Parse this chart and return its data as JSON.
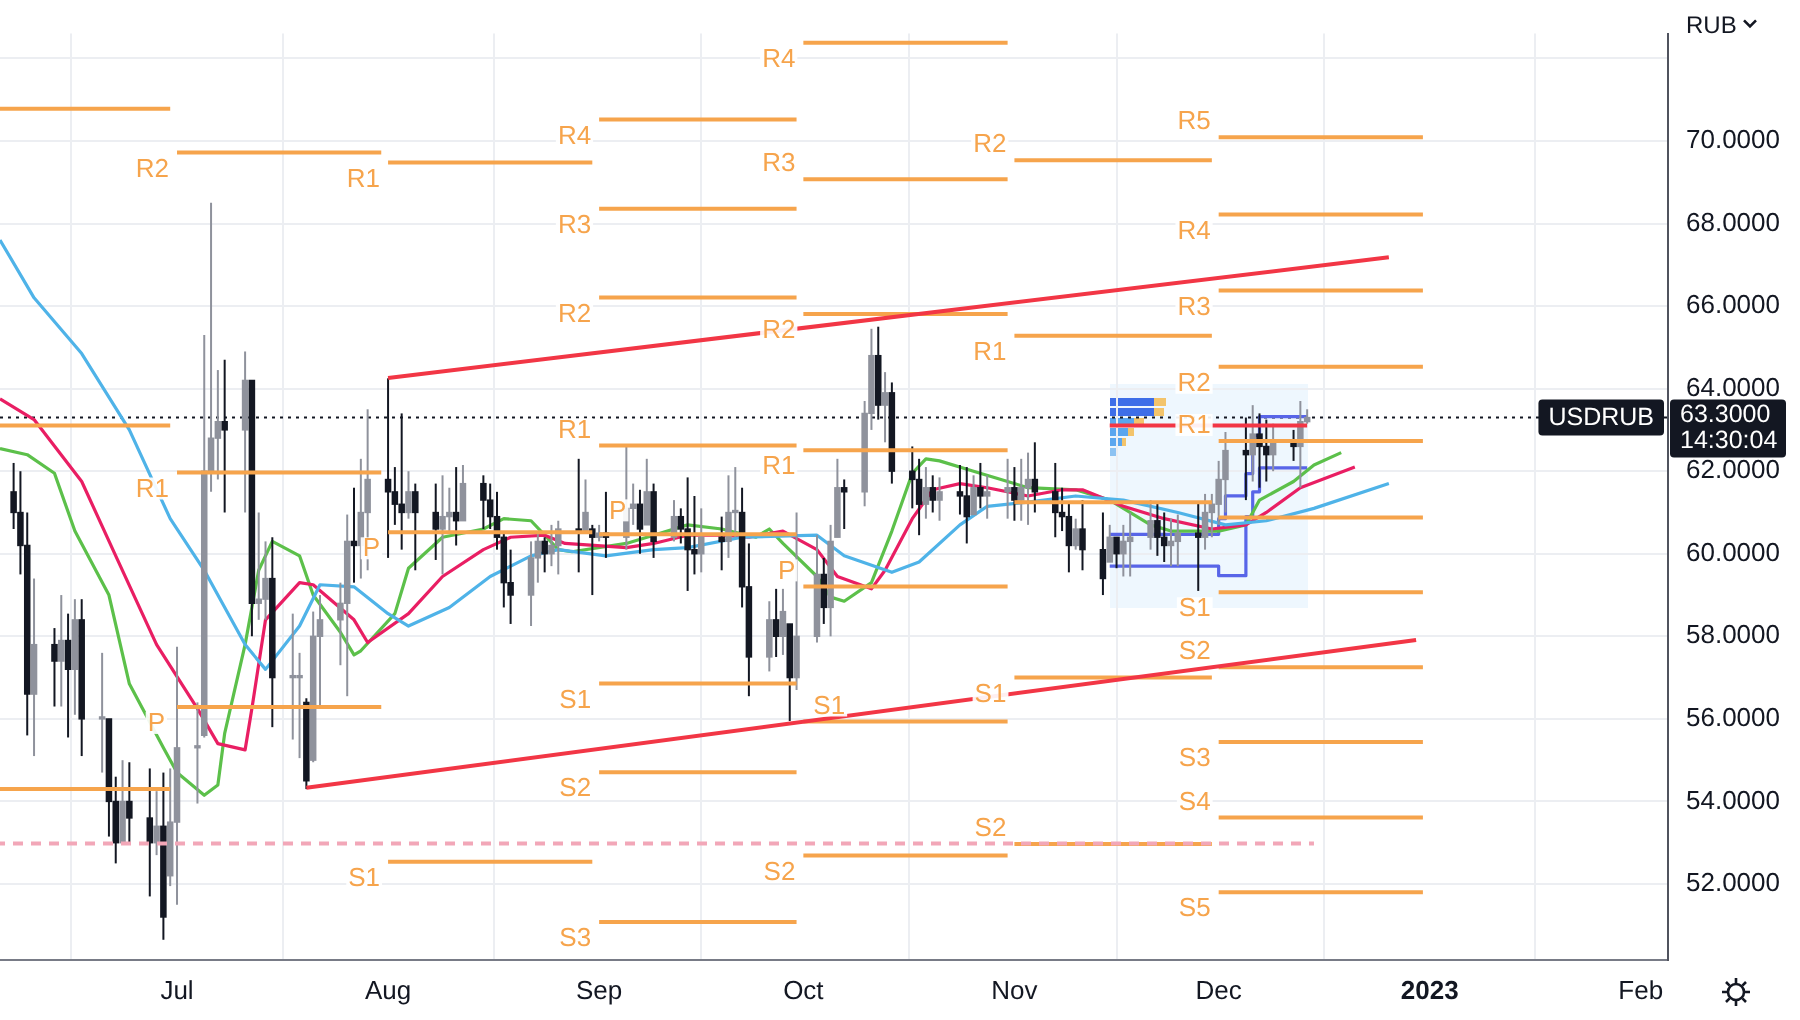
{
  "chart_data": {
    "type": "candlestick",
    "ylabel": "RUB",
    "grid": true,
    "xlim": [
      "2022-06-05",
      "2023-02-05"
    ],
    "xticks": [
      {
        "value": "2022-07-01",
        "label": "Jul"
      },
      {
        "value": "2022-08-01",
        "label": "Aug"
      },
      {
        "value": "2022-09-01",
        "label": "Sep"
      },
      {
        "value": "2022-10-01",
        "label": "Oct"
      },
      {
        "value": "2022-11-01",
        "label": "Nov"
      },
      {
        "value": "2022-12-01",
        "label": "Dec"
      },
      {
        "value": "2023-01-01",
        "label": "2023"
      },
      {
        "value": "2023-02-01",
        "label": "Feb"
      }
    ],
    "ylim": [
      50.16,
      72.6
    ],
    "yticks": [
      {
        "value": 52,
        "label": "52.0000"
      },
      {
        "value": 54,
        "label": "54.0000"
      },
      {
        "value": 56,
        "label": "56.0000"
      },
      {
        "value": 58,
        "label": "58.0000"
      },
      {
        "value": 60,
        "label": "60.0000"
      },
      {
        "value": 62,
        "label": "62.0000"
      },
      {
        "value": 64,
        "label": "64.0000"
      },
      {
        "value": 66,
        "label": "66.0000"
      },
      {
        "value": 68,
        "label": "68.0000"
      },
      {
        "value": 70,
        "label": "70.0000"
      },
      {
        "value": 72,
        "label": null
      }
    ],
    "series": [
      {
        "x": [
          "2022-06-07",
          "2022-06-08",
          "2022-06-09",
          "2022-06-10",
          "2022-06-13",
          "2022-06-14",
          "2022-06-15",
          "2022-06-16",
          "2022-06-17",
          "2022-06-20",
          "2022-06-21",
          "2022-06-22",
          "2022-06-23",
          "2022-06-24",
          "2022-06-27",
          "2022-06-28",
          "2022-06-29",
          "2022-06-30",
          "2022-07-01",
          "2022-07-04",
          "2022-07-05",
          "2022-07-06",
          "2022-07-07",
          "2022-07-08",
          "2022-07-11",
          "2022-07-12",
          "2022-07-13",
          "2022-07-14",
          "2022-07-15",
          "2022-07-18",
          "2022-07-19",
          "2022-07-20",
          "2022-07-21",
          "2022-07-22",
          "2022-07-25",
          "2022-07-26",
          "2022-07-27",
          "2022-07-28",
          "2022-07-29",
          "2022-08-01",
          "2022-08-02",
          "2022-08-03",
          "2022-08-04",
          "2022-08-05",
          "2022-08-08",
          "2022-08-09",
          "2022-08-10",
          "2022-08-11",
          "2022-08-12",
          "2022-08-15",
          "2022-08-16",
          "2022-08-17",
          "2022-08-18",
          "2022-08-19",
          "2022-08-22",
          "2022-08-23",
          "2022-08-24",
          "2022-08-25",
          "2022-08-26",
          "2022-08-29",
          "2022-08-30",
          "2022-08-31",
          "2022-09-01",
          "2022-09-02",
          "2022-09-05",
          "2022-09-06",
          "2022-09-07",
          "2022-09-08",
          "2022-09-09",
          "2022-09-12",
          "2022-09-13",
          "2022-09-14",
          "2022-09-15",
          "2022-09-16",
          "2022-09-19",
          "2022-09-20",
          "2022-09-21",
          "2022-09-22",
          "2022-09-23",
          "2022-09-26",
          "2022-09-27",
          "2022-09-28",
          "2022-09-29",
          "2022-09-30",
          "2022-10-03",
          "2022-10-04",
          "2022-10-05",
          "2022-10-06",
          "2022-10-07",
          "2022-10-10",
          "2022-10-11",
          "2022-10-12",
          "2022-10-13",
          "2022-10-14",
          "2022-10-17",
          "2022-10-18",
          "2022-10-19",
          "2022-10-20",
          "2022-10-21",
          "2022-10-24",
          "2022-10-25",
          "2022-10-26",
          "2022-10-27",
          "2022-10-28",
          "2022-10-31",
          "2022-11-01",
          "2022-11-02",
          "2022-11-03",
          "2022-11-04",
          "2022-11-07",
          "2022-11-08",
          "2022-11-09",
          "2022-11-10",
          "2022-11-11",
          "2022-11-14",
          "2022-11-15",
          "2022-11-16",
          "2022-11-17",
          "2022-11-18",
          "2022-11-21",
          "2022-11-22",
          "2022-11-23",
          "2022-11-24",
          "2022-11-25",
          "2022-11-28",
          "2022-11-29",
          "2022-11-30",
          "2022-12-01",
          "2022-12-02",
          "2022-12-05",
          "2022-12-06",
          "2022-12-07",
          "2022-12-08",
          "2022-12-09",
          "2022-12-12",
          "2022-12-13",
          "2022-12-14"
        ],
        "colors": [
          "#131722",
          "#131722",
          "#131722",
          "#8f929c",
          "#131722",
          "#8f929c",
          "#131722",
          "#8f929c",
          "#131722",
          "#8f929c",
          "#131722",
          "#131722",
          "#8f929c",
          "#131722",
          "#131722",
          "#8f929c",
          "#131722",
          "#8f929c",
          "#8f929c",
          "#8f929c",
          "#8f929c",
          "#8f929c",
          "#8f929c",
          "#131722",
          "#8f929c",
          "#131722",
          "#8f929c",
          "#8f929c",
          "#131722",
          "#8f929c",
          "#8f929c",
          "#131722",
          "#8f929c",
          "#8f929c",
          "#8f929c",
          "#8f929c",
          "#131722",
          "#8f929c",
          "#8f929c",
          "#131722",
          "#131722",
          "#131722",
          "#8f929c",
          "#131722",
          "#131722",
          "#8f929c",
          "#8f929c",
          "#131722",
          "#8f929c",
          "#131722",
          "#131722",
          "#131722",
          "#131722",
          "#131722",
          "#8f929c",
          "#8f929c",
          "#131722",
          "#8f929c",
          "#8f929c",
          "#131722",
          "#8f929c",
          "#131722",
          "#8f929c",
          "#131722",
          "#8f929c",
          "#8f929c",
          "#131722",
          "#8f929c",
          "#131722",
          "#8f929c",
          "#131722",
          "#131722",
          "#131722",
          "#8f929c",
          "#131722",
          "#8f929c",
          "#8f929c",
          "#131722",
          "#131722",
          "#8f929c",
          "#131722",
          "#8f929c",
          "#131722",
          "#8f929c",
          "#8f929c",
          "#131722",
          "#8f929c",
          "#8f929c",
          "#131722",
          "#8f929c",
          "#8f929c",
          "#131722",
          "#8f929c",
          "#131722",
          "#131722",
          "#131722",
          "#8f929c",
          "#131722",
          "#8f929c",
          "#131722",
          "#131722",
          "#8f929c",
          "#131722",
          "#8f929c",
          "#8f929c",
          "#131722",
          "#8f929c",
          "#8f929c",
          "#131722",
          "#131722",
          "#131722",
          "#131722",
          "#8f929c",
          "#131722",
          "#131722",
          "#8f929c",
          "#131722",
          "#8f929c",
          "#8f929c",
          "#8f929c",
          "#131722",
          "#131722",
          "#8f929c",
          "#8f929c",
          "#131722",
          "#8f929c",
          "#8f929c",
          "#8f929c",
          "#8f929c",
          "#131722",
          "#8f929c",
          "#131722",
          "#131722",
          "#8f929c",
          "#131722",
          "#8f929c",
          "#8f929c"
        ],
        "ohlc": [
          [
            61.5,
            62.2,
            60.6,
            61.0
          ],
          [
            61.0,
            62.0,
            59.5,
            60.2
          ],
          [
            60.2,
            61.0,
            55.6,
            56.6
          ],
          [
            56.6,
            59.4,
            55.1,
            57.8
          ],
          [
            57.8,
            58.2,
            56.3,
            57.4
          ],
          [
            57.4,
            59.0,
            56.3,
            57.9
          ],
          [
            57.9,
            58.55,
            55.55,
            57.2
          ],
          [
            57.2,
            58.9,
            56.1,
            58.4
          ],
          [
            58.4,
            58.9,
            55.1,
            56.0
          ],
          [
            56.0,
            57.6,
            54.7,
            56.0
          ],
          [
            56.0,
            56.0,
            53.15,
            54.0
          ],
          [
            54.0,
            54.6,
            52.5,
            53.0
          ],
          [
            53.0,
            55.0,
            53.0,
            54.0
          ],
          [
            54.0,
            54.95,
            52.95,
            53.6
          ],
          [
            53.6,
            54.8,
            51.7,
            53.0
          ],
          [
            53.0,
            54.25,
            52.7,
            53.4
          ],
          [
            53.4,
            54.7,
            50.65,
            51.2
          ],
          [
            52.2,
            54.8,
            51.95,
            53.5
          ],
          [
            53.5,
            57.75,
            51.5,
            55.3
          ],
          [
            55.3,
            56.4,
            53.95,
            55.3
          ],
          [
            55.6,
            65.3,
            55.55,
            62.0
          ],
          [
            62.0,
            68.5,
            61.5,
            62.8
          ],
          [
            62.8,
            64.45,
            61.8,
            63.2
          ],
          [
            63.2,
            64.7,
            61.0,
            63.0
          ],
          [
            63.0,
            64.9,
            61.0,
            64.2
          ],
          [
            64.2,
            64.2,
            58.0,
            58.8
          ],
          [
            58.8,
            61.0,
            58.4,
            58.9
          ],
          [
            58.9,
            60.3,
            58.4,
            59.4
          ],
          [
            59.4,
            60.4,
            55.8,
            57.0
          ],
          [
            57.0,
            58.55,
            55.5,
            57.0
          ],
          [
            57.0,
            57.6,
            55.05,
            57.0
          ],
          [
            56.4,
            56.5,
            54.3,
            54.5
          ],
          [
            55.0,
            58.6,
            54.95,
            58.0
          ],
          [
            58.0,
            59.0,
            56.25,
            58.4
          ],
          [
            58.4,
            59.3,
            57.3,
            58.8
          ],
          [
            58.8,
            60.95,
            56.55,
            60.3
          ],
          [
            60.3,
            61.6,
            59.3,
            60.2
          ],
          [
            60.2,
            62.3,
            59.4,
            61.0
          ],
          [
            61.0,
            63.5,
            59.6,
            61.8
          ],
          [
            61.8,
            64.25,
            59.9,
            61.5
          ],
          [
            61.5,
            62.1,
            60.7,
            61.2
          ],
          [
            61.2,
            63.4,
            60.1,
            61.0
          ],
          [
            61.0,
            62.0,
            60.85,
            61.5
          ],
          [
            61.5,
            61.7,
            59.6,
            61.0
          ],
          [
            61.0,
            61.7,
            59.85,
            60.6
          ],
          [
            60.6,
            61.9,
            59.5,
            60.9
          ],
          [
            60.9,
            61.6,
            60.5,
            61.0
          ],
          [
            61.0,
            62.1,
            60.2,
            60.8
          ],
          [
            60.8,
            62.15,
            60.8,
            61.7
          ],
          [
            61.7,
            61.9,
            60.6,
            61.3
          ],
          [
            61.3,
            61.7,
            60.6,
            60.9
          ],
          [
            60.9,
            61.5,
            60.1,
            60.4
          ],
          [
            60.4,
            60.5,
            58.7,
            59.3
          ],
          [
            59.3,
            60.1,
            58.3,
            59.0
          ],
          [
            59.0,
            60.3,
            58.25,
            59.9
          ],
          [
            59.9,
            60.55,
            59.3,
            60.3
          ],
          [
            60.3,
            60.4,
            59.55,
            60.0
          ],
          [
            60.0,
            60.7,
            59.7,
            60.2
          ],
          [
            60.2,
            60.8,
            59.5,
            60.6
          ],
          [
            60.6,
            62.3,
            59.55,
            60.5
          ],
          [
            60.5,
            61.8,
            60.5,
            61.0
          ],
          [
            60.6,
            60.7,
            59.0,
            60.4
          ],
          [
            60.4,
            60.7,
            60.3,
            60.5
          ],
          [
            60.5,
            61.5,
            59.9,
            60.4
          ],
          [
            60.4,
            62.6,
            60.1,
            61.1
          ],
          [
            61.1,
            61.7,
            60.7,
            61.2
          ],
          [
            61.2,
            61.55,
            60.0,
            60.6
          ],
          [
            60.7,
            62.3,
            60.7,
            61.5
          ],
          [
            61.5,
            61.7,
            59.9,
            60.3
          ],
          [
            60.4,
            61.3,
            60.3,
            60.9
          ],
          [
            60.9,
            61.1,
            60.25,
            60.6
          ],
          [
            60.6,
            61.85,
            59.1,
            60.1
          ],
          [
            60.1,
            61.4,
            59.5,
            60.0
          ],
          [
            60.0,
            61.1,
            59.55,
            60.4
          ],
          [
            60.4,
            60.9,
            59.6,
            60.3
          ],
          [
            60.3,
            61.9,
            59.9,
            61.0
          ],
          [
            61.0,
            62.1,
            60.4,
            61.0
          ],
          [
            61.0,
            61.6,
            58.7,
            59.2
          ],
          [
            59.2,
            60.25,
            56.55,
            57.5
          ],
          [
            57.5,
            58.85,
            57.15,
            58.4
          ],
          [
            58.4,
            59.15,
            57.5,
            58.0
          ],
          [
            58.0,
            59.15,
            57.55,
            58.6
          ],
          [
            58.3,
            58.3,
            55.95,
            57.0
          ],
          [
            57.0,
            61.0,
            56.7,
            58.0
          ],
          [
            58.0,
            60.45,
            57.85,
            59.5
          ],
          [
            59.5,
            59.9,
            58.3,
            58.7
          ],
          [
            58.7,
            60.7,
            58.0,
            60.3
          ],
          [
            60.4,
            62.3,
            60.4,
            61.6
          ],
          [
            61.6,
            61.8,
            60.6,
            61.5
          ],
          [
            61.5,
            63.7,
            61.15,
            63.4
          ],
          [
            63.4,
            65.45,
            63.0,
            64.8
          ],
          [
            64.8,
            65.5,
            63.25,
            63.6
          ],
          [
            63.6,
            64.4,
            62.7,
            63.9
          ],
          [
            63.9,
            64.15,
            61.7,
            62.0
          ],
          [
            62.0,
            62.6,
            61.1,
            61.8
          ],
          [
            61.8,
            62.3,
            60.45,
            61.2
          ],
          [
            61.2,
            62.1,
            60.85,
            61.6
          ],
          [
            61.6,
            61.9,
            61.0,
            61.3
          ],
          [
            61.3,
            61.85,
            60.8,
            61.5
          ],
          [
            61.5,
            62.15,
            60.95,
            61.4
          ],
          [
            61.4,
            62.1,
            60.25,
            60.9
          ],
          [
            60.95,
            61.9,
            60.95,
            61.6
          ],
          [
            61.6,
            62.2,
            61.1,
            61.4
          ],
          [
            61.4,
            61.9,
            60.85,
            61.5
          ],
          [
            61.5,
            62.3,
            60.85,
            61.6
          ],
          [
            61.6,
            62.1,
            60.8,
            61.3
          ],
          [
            61.3,
            62.3,
            60.8,
            61.6
          ],
          [
            61.6,
            62.45,
            60.7,
            61.8
          ],
          [
            61.8,
            62.7,
            61.0,
            61.5
          ],
          [
            61.5,
            62.2,
            60.4,
            61.0
          ],
          [
            61.0,
            61.6,
            60.55,
            60.9
          ],
          [
            60.9,
            61.25,
            59.55,
            60.2
          ],
          [
            60.2,
            60.85,
            60.1,
            60.6
          ],
          [
            60.6,
            61.3,
            59.6,
            60.1
          ],
          [
            60.1,
            61.0,
            59.0,
            59.4
          ],
          [
            59.8,
            60.7,
            59.8,
            60.4
          ],
          [
            60.4,
            60.4,
            59.65,
            60.0
          ],
          [
            60.0,
            60.7,
            59.45,
            60.3
          ],
          [
            60.3,
            61.0,
            59.45,
            60.4
          ],
          [
            60.4,
            61.3,
            60.1,
            60.8
          ],
          [
            60.8,
            61.25,
            59.95,
            60.4
          ],
          [
            60.4,
            61.0,
            59.8,
            60.2
          ],
          [
            60.2,
            60.85,
            59.7,
            60.3
          ],
          [
            60.3,
            60.95,
            59.7,
            60.5
          ],
          [
            60.5,
            61.25,
            59.1,
            60.4
          ],
          [
            60.4,
            61.45,
            60.1,
            61.0
          ],
          [
            61.0,
            61.45,
            60.4,
            61.2
          ],
          [
            61.2,
            62.25,
            60.7,
            61.8
          ],
          [
            61.8,
            62.95,
            61.0,
            62.5
          ],
          [
            62.5,
            63.3,
            61.3,
            62.4
          ],
          [
            62.4,
            63.6,
            61.75,
            62.9
          ],
          [
            62.9,
            63.4,
            61.6,
            62.6
          ],
          [
            62.6,
            63.25,
            61.75,
            62.4
          ],
          [
            62.4,
            63.15,
            62.0,
            62.7
          ],
          [
            62.7,
            63.0,
            62.25,
            62.6
          ],
          [
            62.6,
            63.7,
            61.6,
            63.2
          ],
          [
            63.2,
            63.5,
            63.15,
            63.3
          ]
        ]
      },
      {
        "type": "line",
        "color": "#4fb3e8",
        "x": [
          "2022-06-05",
          "2022-06-10",
          "2022-06-17",
          "2022-06-24",
          "2022-06-30",
          "2022-07-05",
          "2022-07-11",
          "2022-07-14",
          "2022-07-19",
          "2022-07-22",
          "2022-07-27",
          "2022-08-01",
          "2022-08-04",
          "2022-08-10",
          "2022-08-16",
          "2022-08-22",
          "2022-08-26",
          "2022-09-02",
          "2022-09-09",
          "2022-09-14",
          "2022-09-22",
          "2022-10-03",
          "2022-10-07",
          "2022-10-14",
          "2022-10-18",
          "2022-10-24",
          "2022-10-28",
          "2022-11-03",
          "2022-11-10",
          "2022-11-17",
          "2022-11-25",
          "2022-12-02",
          "2022-12-08",
          "2022-12-15",
          "2022-12-26"
        ],
        "values": [
          67.6,
          66.2,
          64.85,
          63.0,
          60.85,
          59.6,
          57.8,
          57.2,
          58.25,
          59.25,
          59.2,
          58.55,
          58.25,
          58.7,
          59.45,
          59.95,
          60.1,
          59.95,
          60.1,
          60.15,
          60.4,
          60.45,
          59.95,
          59.55,
          59.8,
          60.7,
          61.15,
          61.25,
          61.4,
          61.3,
          61.0,
          60.7,
          60.8,
          61.1,
          61.7
        ]
      },
      {
        "type": "line",
        "color": "#e91e63",
        "x": [
          "2022-06-05",
          "2022-06-10",
          "2022-06-17",
          "2022-06-22",
          "2022-06-28",
          "2022-07-04",
          "2022-07-07",
          "2022-07-11",
          "2022-07-12",
          "2022-07-14",
          "2022-07-19",
          "2022-07-21",
          "2022-07-27",
          "2022-07-29",
          "2022-08-04",
          "2022-08-09",
          "2022-08-15",
          "2022-08-19",
          "2022-08-24",
          "2022-08-27",
          "2022-09-05",
          "2022-09-09",
          "2022-09-14",
          "2022-09-19",
          "2022-09-23",
          "2022-09-28",
          "2022-10-03",
          "2022-10-06",
          "2022-10-11",
          "2022-10-13",
          "2022-10-17",
          "2022-10-20",
          "2022-10-24",
          "2022-10-28",
          "2022-11-03",
          "2022-11-08",
          "2022-11-11",
          "2022-11-17",
          "2022-11-23",
          "2022-11-30",
          "2022-12-05",
          "2022-12-08",
          "2022-12-13",
          "2022-12-21"
        ],
        "values": [
          63.75,
          63.25,
          61.75,
          59.95,
          57.8,
          56.25,
          55.4,
          55.25,
          56.25,
          58.4,
          59.3,
          59.25,
          58.4,
          57.85,
          58.55,
          59.45,
          60.1,
          60.4,
          60.45,
          60.25,
          60.15,
          60.25,
          60.45,
          60.45,
          60.4,
          60.55,
          60.1,
          59.45,
          59.15,
          59.6,
          60.85,
          61.55,
          61.7,
          61.6,
          61.4,
          61.55,
          61.55,
          61.15,
          60.85,
          60.6,
          60.7,
          61.0,
          61.6,
          62.1
        ]
      },
      {
        "type": "line",
        "color": "#5cc04a",
        "x": [
          "2022-06-05",
          "2022-06-09",
          "2022-06-13",
          "2022-06-16",
          "2022-06-21",
          "2022-06-24",
          "2022-06-29",
          "2022-07-01",
          "2022-07-05",
          "2022-07-07",
          "2022-07-08",
          "2022-07-11",
          "2022-07-13",
          "2022-07-15",
          "2022-07-19",
          "2022-07-21",
          "2022-07-25",
          "2022-07-27",
          "2022-07-28",
          "2022-08-02",
          "2022-08-04",
          "2022-08-09",
          "2022-08-15",
          "2022-08-18",
          "2022-08-22",
          "2022-08-24",
          "2022-08-26",
          "2022-08-28",
          "2022-09-05",
          "2022-09-09",
          "2022-09-14",
          "2022-09-19",
          "2022-09-24",
          "2022-09-26",
          "2022-09-28",
          "2022-10-03",
          "2022-10-05",
          "2022-10-07",
          "2022-10-11",
          "2022-10-14",
          "2022-10-17",
          "2022-10-19",
          "2022-10-21",
          "2022-10-26",
          "2022-10-31",
          "2022-11-03",
          "2022-11-10",
          "2022-11-15",
          "2022-11-21",
          "2022-11-24",
          "2022-12-01",
          "2022-12-05",
          "2022-12-07",
          "2022-12-12",
          "2022-12-15",
          "2022-12-19"
        ],
        "values": [
          62.55,
          62.4,
          61.95,
          60.55,
          59.0,
          56.85,
          55.3,
          54.7,
          54.15,
          54.4,
          55.65,
          57.8,
          59.6,
          60.3,
          59.95,
          59.0,
          58.1,
          57.55,
          57.65,
          58.55,
          59.65,
          60.4,
          60.6,
          60.85,
          60.8,
          60.45,
          60.1,
          60.05,
          60.25,
          60.45,
          60.7,
          60.6,
          60.4,
          60.6,
          60.25,
          59.45,
          58.95,
          58.85,
          59.3,
          60.55,
          61.95,
          62.3,
          62.25,
          62.0,
          61.75,
          61.6,
          61.55,
          61.3,
          60.7,
          60.55,
          60.55,
          60.7,
          61.3,
          61.75,
          62.15,
          62.45
        ]
      },
      {
        "type": "line",
        "color": "#f23645",
        "x": [
          "2022-08-01",
          "2022-12-26"
        ],
        "values": [
          64.26,
          67.18
        ]
      },
      {
        "type": "line",
        "color": "#f23645",
        "x": [
          "2022-07-20",
          "2022-12-30"
        ],
        "values": [
          54.33,
          57.91
        ]
      },
      {
        "type": "line",
        "color": "#f23645",
        "x": [
          "2022-11-15",
          "2022-12-14"
        ],
        "values": [
          63.11,
          63.11
        ]
      },
      {
        "type": "step",
        "color": "#5865e8",
        "x": [
          "2022-11-15",
          "2022-12-01",
          "2022-12-02",
          "2022-12-05",
          "2022-12-06",
          "2022-12-07",
          "2022-12-14"
        ],
        "values": [
          60.47,
          60.85,
          61.4,
          61.94,
          62.86,
          63.32,
          63.32
        ]
      },
      {
        "type": "step",
        "color": "#5865e8",
        "x": [
          "2022-11-15",
          "2022-12-01",
          "2022-12-05",
          "2022-12-06",
          "2022-12-07",
          "2022-12-14"
        ],
        "values": [
          59.7,
          59.47,
          60.9,
          61.5,
          62.08,
          62.08
        ]
      },
      {
        "type": "line",
        "color": "#f2a7b8",
        "line_style": "dashed",
        "x": [
          "2022-06-05",
          "2022-12-15"
        ],
        "values": [
          52.98,
          52.98
        ]
      },
      {
        "type": "line",
        "color": "#f6a44c",
        "x": [
          "2022-06-05",
          "2022-06-30"
        ],
        "values": [
          70.78,
          70.78
        ]
      },
      {
        "type": "line",
        "color": "#f6a44c",
        "x": [
          "2022-06-05",
          "2022-06-30"
        ],
        "values": [
          63.11,
          63.11
        ]
      },
      {
        "type": "line",
        "color": "#f6a44c",
        "x": [
          "2022-06-05",
          "2022-06-30"
        ],
        "values": [
          54.3,
          54.3
        ]
      },
      {
        "type": "line",
        "name": "R2",
        "color": "#f6a44c",
        "x": [
          "2022-07-01",
          "2022-07-31"
        ],
        "values": [
          69.72,
          69.72
        ]
      },
      {
        "type": "line",
        "name": "R1",
        "color": "#f6a44c",
        "x": [
          "2022-07-01",
          "2022-07-31"
        ],
        "values": [
          61.97,
          61.97
        ]
      },
      {
        "type": "line",
        "name": "P",
        "color": "#f6a44c",
        "x": [
          "2022-07-01",
          "2022-07-31"
        ],
        "values": [
          56.29,
          56.29
        ]
      },
      {
        "type": "line",
        "name": "R1",
        "color": "#f6a44c",
        "x": [
          "2022-08-01",
          "2022-08-31"
        ],
        "values": [
          69.48,
          69.48
        ]
      },
      {
        "type": "line",
        "name": "P",
        "color": "#f6a44c",
        "x": [
          "2022-08-01",
          "2022-08-31"
        ],
        "values": [
          60.52,
          60.52
        ]
      },
      {
        "type": "line",
        "name": "S1",
        "color": "#f6a44c",
        "x": [
          "2022-08-01",
          "2022-08-31"
        ],
        "values": [
          52.54,
          52.54
        ]
      },
      {
        "type": "line",
        "name": "R4",
        "color": "#f6a44c",
        "x": [
          "2022-09-01",
          "2022-09-30"
        ],
        "values": [
          70.52,
          70.52
        ]
      },
      {
        "type": "line",
        "name": "R3",
        "color": "#f6a44c",
        "x": [
          "2022-09-01",
          "2022-09-30"
        ],
        "values": [
          68.36,
          68.36
        ]
      },
      {
        "type": "line",
        "name": "R2",
        "color": "#f6a44c",
        "x": [
          "2022-09-01",
          "2022-09-30"
        ],
        "values": [
          66.21,
          66.21
        ]
      },
      {
        "type": "line",
        "name": "R1",
        "color": "#f6a44c",
        "x": [
          "2022-09-01",
          "2022-09-30"
        ],
        "values": [
          62.62,
          62.62
        ]
      },
      {
        "type": "line",
        "name": "P",
        "color": "#f6a44c",
        "x": [
          "2022-09-01",
          "2022-09-30"
        ],
        "values": [
          60.47,
          60.47
        ]
      },
      {
        "type": "line",
        "name": "S1",
        "color": "#f6a44c",
        "x": [
          "2022-09-01",
          "2022-09-30"
        ],
        "values": [
          56.86,
          56.86
        ]
      },
      {
        "type": "line",
        "name": "S2",
        "color": "#f6a44c",
        "x": [
          "2022-09-01",
          "2022-09-30"
        ],
        "values": [
          54.71,
          54.71
        ]
      },
      {
        "type": "line",
        "name": "S3",
        "color": "#f6a44c",
        "x": [
          "2022-09-01",
          "2022-09-30"
        ],
        "values": [
          51.08,
          51.08
        ]
      },
      {
        "type": "line",
        "name": "R4",
        "color": "#f6a44c",
        "x": [
          "2022-10-01",
          "2022-10-31"
        ],
        "values": [
          72.38,
          72.38
        ]
      },
      {
        "type": "line",
        "name": "R3",
        "color": "#f6a44c",
        "x": [
          "2022-10-01",
          "2022-10-31"
        ],
        "values": [
          69.07,
          69.07
        ]
      },
      {
        "type": "line",
        "name": "R2",
        "color": "#f6a44c",
        "x": [
          "2022-10-01",
          "2022-10-31"
        ],
        "values": [
          65.81,
          65.81
        ]
      },
      {
        "type": "line",
        "name": "R1",
        "color": "#f6a44c",
        "x": [
          "2022-10-01",
          "2022-10-31"
        ],
        "values": [
          62.51,
          62.51
        ]
      },
      {
        "type": "line",
        "name": "P",
        "color": "#f6a44c",
        "x": [
          "2022-10-01",
          "2022-10-31"
        ],
        "values": [
          59.21,
          59.21
        ]
      },
      {
        "type": "line",
        "name": "S1",
        "color": "#f6a44c",
        "x": [
          "2022-10-01",
          "2022-10-31"
        ],
        "values": [
          55.94,
          55.94
        ]
      },
      {
        "type": "line",
        "name": "S2",
        "color": "#f6a44c",
        "x": [
          "2022-10-01",
          "2022-10-31"
        ],
        "values": [
          52.69,
          52.69
        ]
      },
      {
        "type": "line",
        "name": "R2",
        "color": "#f6a44c",
        "x": [
          "2022-11-01",
          "2022-11-30"
        ],
        "values": [
          69.53,
          69.53
        ]
      },
      {
        "type": "line",
        "name": "R1",
        "color": "#f6a44c",
        "x": [
          "2022-11-01",
          "2022-11-30"
        ],
        "values": [
          65.28,
          65.28
        ]
      },
      {
        "type": "line",
        "color": "#f6a44c",
        "x": [
          "2022-11-01",
          "2022-11-30"
        ],
        "values": [
          61.25,
          61.25
        ]
      },
      {
        "type": "line",
        "name": "S1",
        "color": "#f6a44c",
        "x": [
          "2022-11-01",
          "2022-11-30"
        ],
        "values": [
          57.0,
          57.0
        ]
      },
      {
        "type": "line",
        "name": "S2",
        "color": "#f6a44c",
        "x": [
          "2022-11-01",
          "2022-11-30"
        ],
        "values": [
          52.97,
          52.97
        ]
      },
      {
        "type": "line",
        "name": "R5",
        "color": "#f6a44c",
        "x": [
          "2022-12-01",
          "2022-12-31"
        ],
        "values": [
          70.09,
          70.09
        ]
      },
      {
        "type": "line",
        "name": "R4",
        "color": "#f6a44c",
        "x": [
          "2022-12-01",
          "2022-12-31"
        ],
        "values": [
          68.22,
          68.22
        ]
      },
      {
        "type": "line",
        "name": "R3",
        "color": "#f6a44c",
        "x": [
          "2022-12-01",
          "2022-12-31"
        ],
        "values": [
          66.38,
          66.38
        ]
      },
      {
        "type": "line",
        "name": "R2",
        "color": "#f6a44c",
        "x": [
          "2022-12-01",
          "2022-12-31"
        ],
        "values": [
          64.53,
          64.53
        ]
      },
      {
        "type": "line",
        "name": "R1",
        "color": "#f6a44c",
        "x": [
          "2022-12-01",
          "2022-12-31"
        ],
        "values": [
          62.73,
          62.73
        ]
      },
      {
        "type": "line",
        "color": "#f6a44c",
        "x": [
          "2022-12-01",
          "2022-12-31"
        ],
        "values": [
          60.88,
          60.88
        ]
      },
      {
        "type": "line",
        "name": "S1",
        "color": "#f6a44c",
        "x": [
          "2022-12-01",
          "2022-12-31"
        ],
        "values": [
          59.07,
          59.07
        ]
      },
      {
        "type": "line",
        "name": "S2",
        "color": "#f6a44c",
        "x": [
          "2022-12-01",
          "2022-12-31"
        ],
        "values": [
          57.25,
          57.25
        ]
      },
      {
        "type": "line",
        "name": "S3",
        "color": "#f6a44c",
        "x": [
          "2022-12-01",
          "2022-12-31"
        ],
        "values": [
          55.44,
          55.44
        ]
      },
      {
        "type": "line",
        "name": "S4",
        "color": "#f6a44c",
        "x": [
          "2022-12-01",
          "2022-12-31"
        ],
        "values": [
          53.61,
          53.61
        ]
      },
      {
        "type": "line",
        "name": "S5",
        "color": "#f6a44c",
        "x": [
          "2022-12-01",
          "2022-12-31"
        ],
        "values": [
          51.8,
          51.8
        ]
      }
    ],
    "ref_lines": [
      {
        "axis": "y",
        "value": 63.3,
        "label": "USDRUB",
        "line_style": "dotted",
        "color": "#131722"
      }
    ],
    "annotations": [
      "63.3000",
      "14:30:04"
    ]
  }
}
